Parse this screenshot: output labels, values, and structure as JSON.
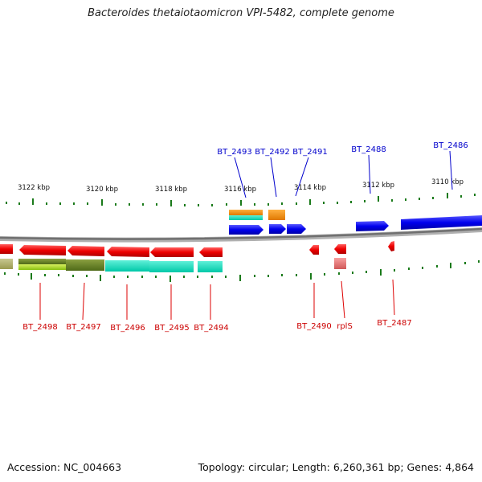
{
  "title": "Bacteroides thetaiotaomicron VPI-5482, complete genome",
  "footer": {
    "accession": "Accession: NC_004663",
    "topology": "Topology: circular; Length: 6,260,361 bp; Genes: 4,864"
  },
  "scale_labels": [
    "3122 kbp",
    "3120 kbp",
    "3118 kbp",
    "3116 kbp",
    "3114 kbp",
    "3112 kbp",
    "3110 kbp"
  ],
  "forward_labels": [
    "BT_2493",
    "BT_2492",
    "BT_2491",
    "BT_2488",
    "BT_2486"
  ],
  "reverse_labels": [
    "BT_2498",
    "BT_2497",
    "BT_2496",
    "BT_2495",
    "BT_2494",
    "BT_2490",
    "rplS",
    "BT_2487"
  ],
  "colors": {
    "forward_strand": "#0000cc",
    "reverse_strand": "#dd0000",
    "backbone": "#808080",
    "ticks": "#1a7a1a"
  }
}
